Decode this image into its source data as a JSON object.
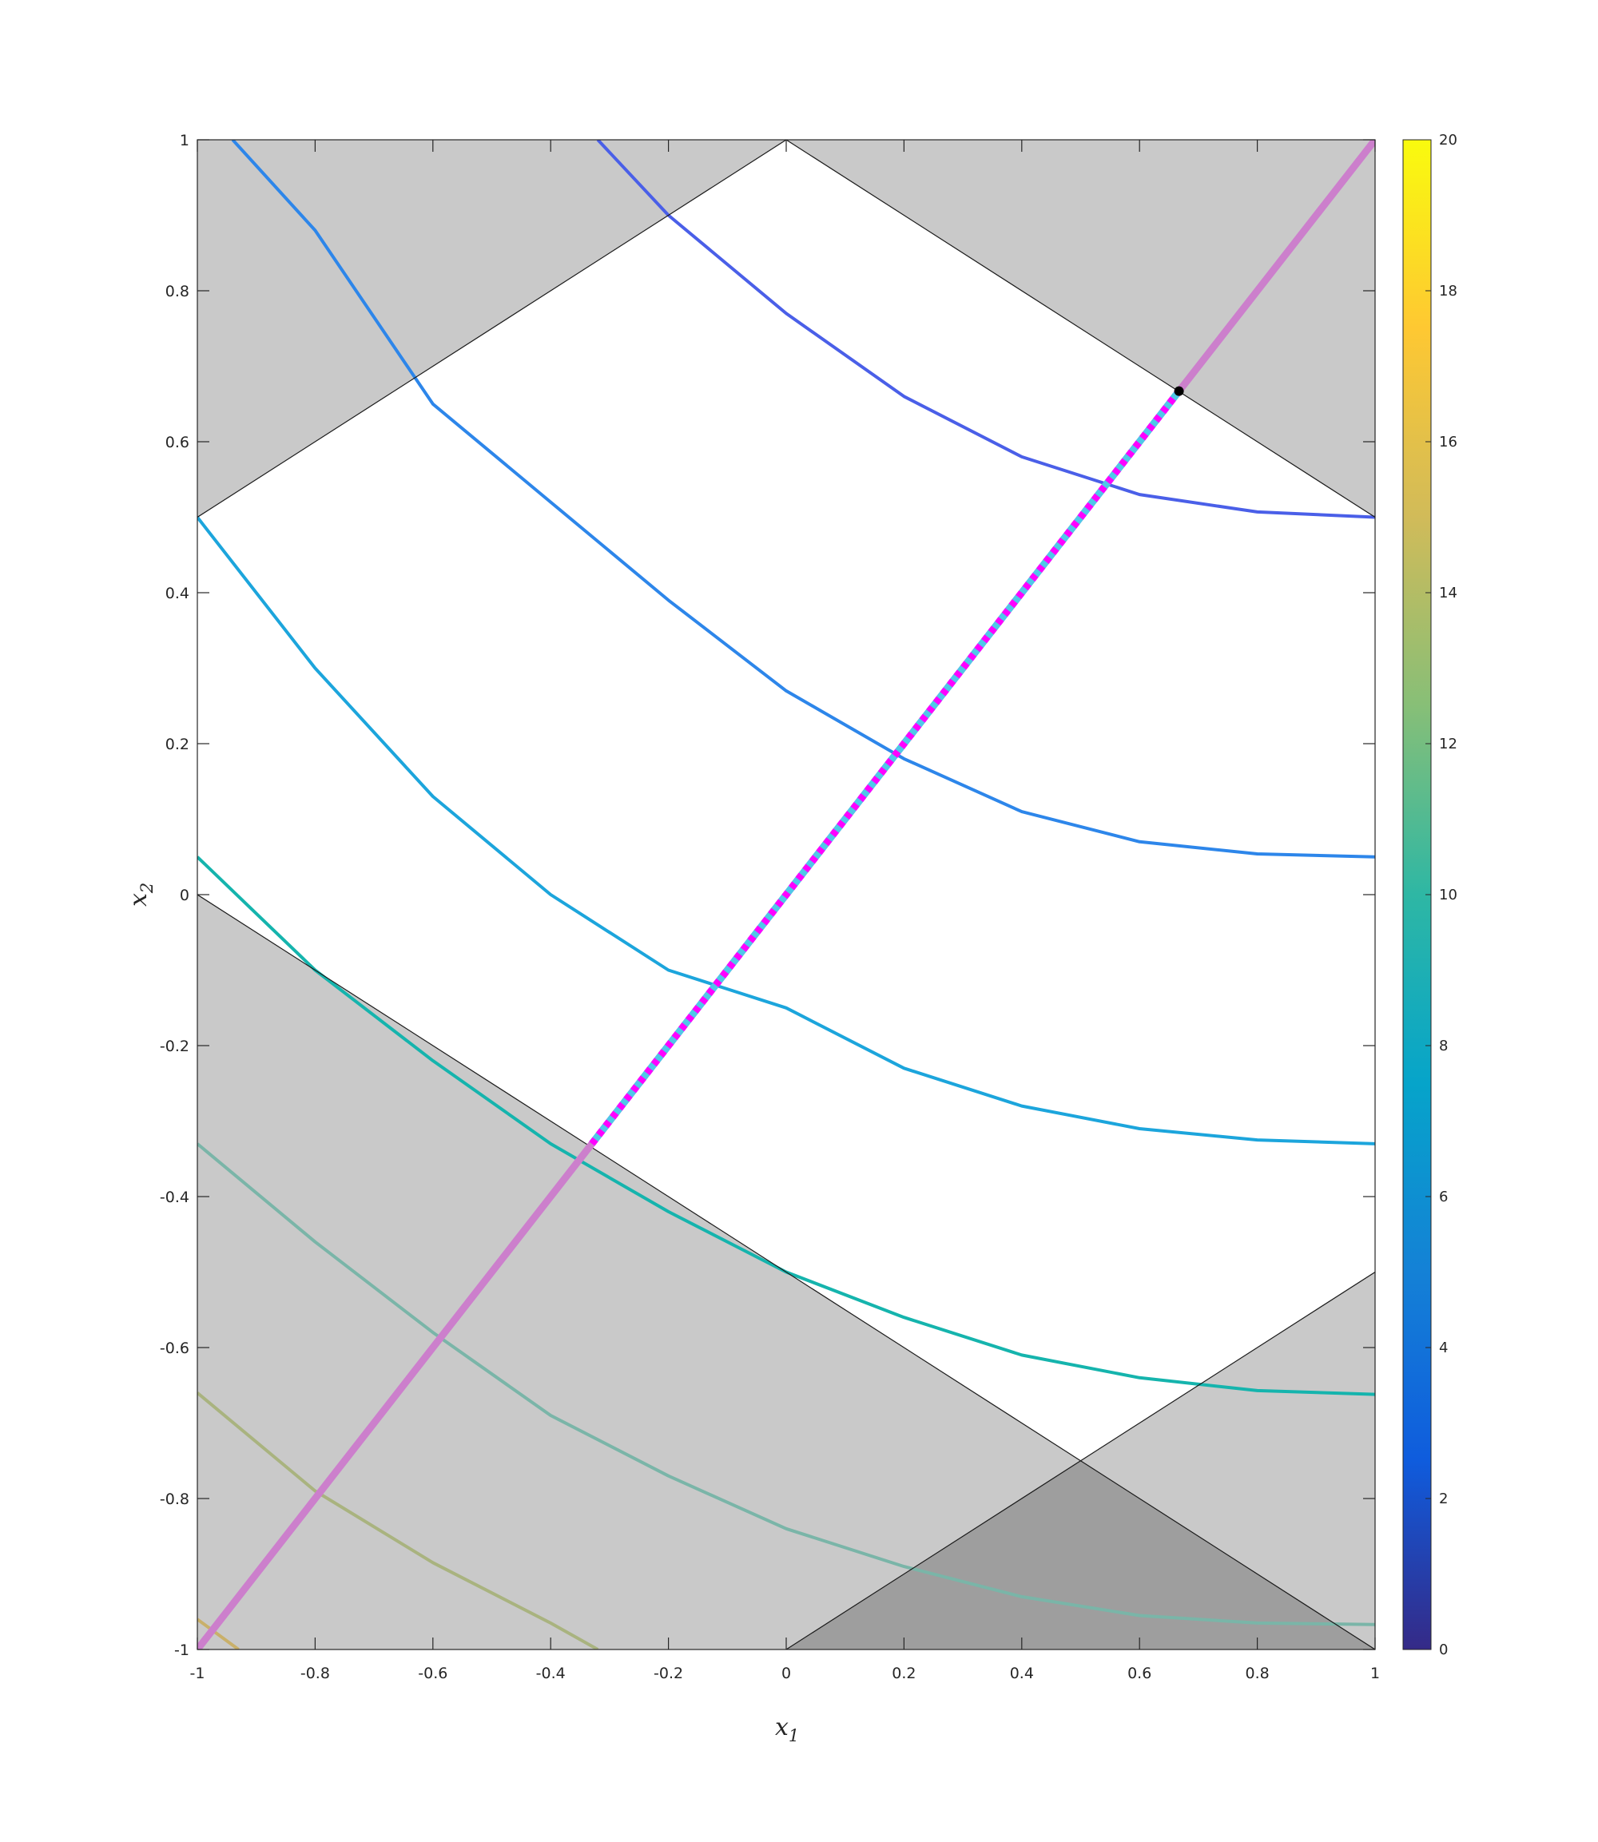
{
  "chart_data": {
    "type": "line",
    "xlabel": "x",
    "xlabel_sub": "1",
    "ylabel": "x",
    "ylabel_sub": "2",
    "xlim": [
      -1,
      1
    ],
    "ylim": [
      -1,
      1
    ],
    "xticks": [
      "-1",
      "-0.8",
      "-0.6",
      "-0.4",
      "-0.2",
      "0",
      "0.2",
      "0.4",
      "0.6",
      "0.8",
      "1"
    ],
    "yticks": [
      "-1",
      "-0.8",
      "-0.6",
      "-0.4",
      "-0.2",
      "0",
      "0.2",
      "0.4",
      "0.6",
      "0.8",
      "1"
    ],
    "grid": false,
    "colorbar": {
      "range": [
        0,
        20
      ],
      "ticks": [
        "0",
        "2",
        "4",
        "6",
        "8",
        "10",
        "12",
        "14",
        "16",
        "18",
        "20"
      ],
      "colormap": "parula"
    },
    "infeasible_regions": [
      {
        "vertices": [
          [
            -1,
            1
          ],
          [
            0,
            1
          ],
          [
            -1,
            0.5
          ]
        ]
      },
      {
        "vertices": [
          [
            0,
            1
          ],
          [
            1,
            1
          ],
          [
            1,
            0.5
          ]
        ]
      },
      {
        "vertices": [
          [
            -1,
            0
          ],
          [
            1,
            -1
          ],
          [
            -1,
            -1
          ]
        ]
      },
      {
        "vertices": [
          [
            0,
            -1
          ],
          [
            1,
            -0.5
          ],
          [
            1,
            -1
          ]
        ]
      }
    ],
    "constraint_boundaries": [
      {
        "from": [
          -1,
          0.5
        ],
        "to": [
          0,
          1
        ]
      },
      {
        "from": [
          0,
          1
        ],
        "to": [
          1,
          0.5
        ]
      },
      {
        "from": [
          -1,
          0
        ],
        "to": [
          1,
          -1
        ]
      },
      {
        "from": [
          0,
          -1
        ],
        "to": [
          1,
          -0.5
        ]
      }
    ],
    "contour_series": [
      {
        "level": 3.5,
        "color": "#4a5fe8",
        "points": [
          [
            -0.32,
            1
          ],
          [
            -0.2,
            0.9
          ],
          [
            0,
            0.77
          ],
          [
            0.2,
            0.66
          ],
          [
            0.4,
            0.58
          ],
          [
            0.6,
            0.53
          ],
          [
            0.8,
            0.507
          ],
          [
            1,
            0.5
          ]
        ]
      },
      {
        "level": 6,
        "color": "#2d86ea",
        "points": [
          [
            -0.94,
            1
          ],
          [
            -0.8,
            0.88
          ],
          [
            -0.6,
            0.65
          ],
          [
            -0.4,
            0.52
          ],
          [
            -0.2,
            0.39
          ],
          [
            0,
            0.27
          ],
          [
            0.2,
            0.18
          ],
          [
            0.4,
            0.11
          ],
          [
            0.6,
            0.07
          ],
          [
            0.8,
            0.054
          ],
          [
            1,
            0.05
          ]
        ]
      },
      {
        "level": 7.9,
        "color": "#1ca5dc",
        "points": [
          [
            -1,
            0.5
          ],
          [
            -0.8,
            0.3
          ],
          [
            -0.6,
            0.13
          ],
          [
            -0.4,
            0.0
          ],
          [
            -0.2,
            -0.1
          ],
          [
            0,
            -0.15
          ],
          [
            0.2,
            -0.23
          ],
          [
            0.4,
            -0.28
          ],
          [
            0.6,
            -0.31
          ],
          [
            0.8,
            -0.325
          ],
          [
            1,
            -0.33
          ]
        ]
      },
      {
        "level": 10.5,
        "color": "#15b4ad",
        "points": [
          [
            -1,
            0.05
          ],
          [
            -0.8,
            -0.1
          ],
          [
            -0.6,
            -0.22
          ],
          [
            -0.4,
            -0.33
          ],
          [
            -0.2,
            -0.42
          ],
          [
            0,
            -0.5
          ],
          [
            0.2,
            -0.56
          ],
          [
            0.4,
            -0.61
          ],
          [
            0.6,
            -0.64
          ],
          [
            0.8,
            -0.657
          ],
          [
            1,
            -0.662
          ]
        ]
      },
      {
        "level": 11.4,
        "color": "#7ab5a8",
        "points": [
          [
            -1,
            -0.33
          ],
          [
            -0.8,
            -0.46
          ],
          [
            -0.6,
            -0.58
          ],
          [
            -0.4,
            -0.69
          ],
          [
            -0.2,
            -0.77
          ],
          [
            0,
            -0.84
          ],
          [
            0.2,
            -0.89
          ],
          [
            0.4,
            -0.93
          ],
          [
            0.6,
            -0.955
          ],
          [
            0.8,
            -0.965
          ],
          [
            1,
            -0.967
          ]
        ]
      },
      {
        "level": 14.3,
        "color": "#a9b37f",
        "points": [
          [
            -1,
            -0.66
          ],
          [
            -0.8,
            -0.79
          ],
          [
            -0.6,
            -0.885
          ],
          [
            -0.4,
            -0.965
          ],
          [
            -0.32,
            -1
          ]
        ]
      },
      {
        "level": 16.4,
        "color": "#c9b06a",
        "points": [
          [
            -1,
            -0.96
          ],
          [
            -0.93,
            -1
          ]
        ]
      }
    ],
    "feasible_line": {
      "from": [
        -1,
        -1
      ],
      "to": [
        1,
        1
      ],
      "color": "#cc7fcc"
    },
    "optimal_path": {
      "from": [
        -0.33,
        -0.33
      ],
      "to": [
        0.667,
        0.667
      ],
      "colors": [
        "#4fc8e8",
        "#ff00ff"
      ]
    },
    "optimum_point": {
      "x": 0.667,
      "y": 0.667
    }
  }
}
